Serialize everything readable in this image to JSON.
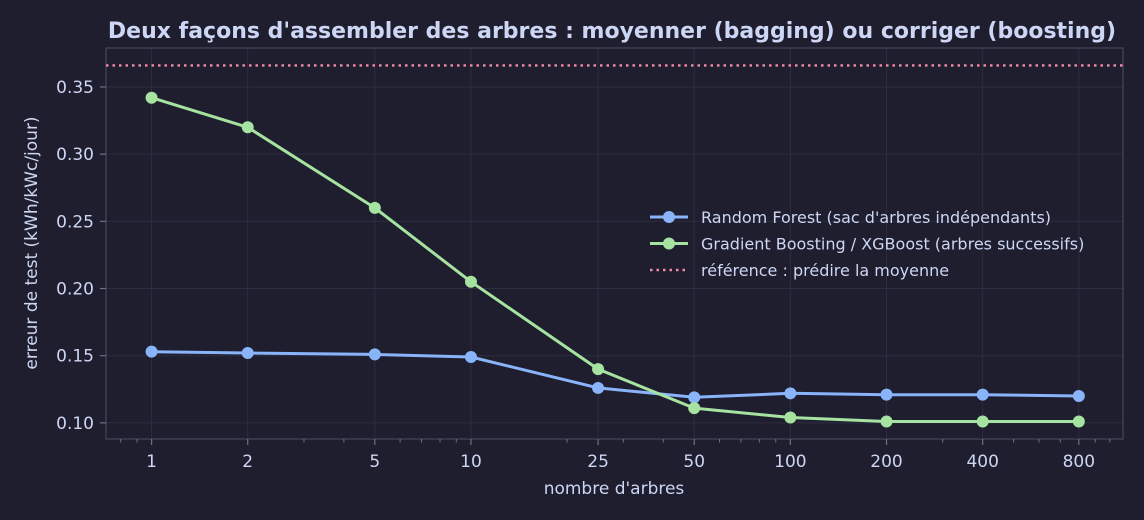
{
  "chart_data": {
    "type": "line",
    "title": "Deux façons d'assembler des arbres : moyenner (bagging) ou corriger (boosting)",
    "xlabel": "nombre d'arbres",
    "ylabel": "erreur de test (kWh/kWc/jour)",
    "x_scale": "log",
    "x": [
      1,
      2,
      5,
      10,
      25,
      50,
      100,
      200,
      400,
      800
    ],
    "x_tick_labels": [
      "1",
      "2",
      "5",
      "10",
      "25",
      "50",
      "100",
      "200",
      "400",
      "800"
    ],
    "y_ticks": [
      0.1,
      0.15,
      0.2,
      0.25,
      0.3,
      0.35
    ],
    "y_tick_labels": [
      "0.10",
      "0.15",
      "0.20",
      "0.25",
      "0.30",
      "0.35"
    ],
    "xlim": [
      0.72,
      1100
    ],
    "ylim": [
      0.088,
      0.379
    ],
    "grid": true,
    "legend_position": "center-right",
    "series": [
      {
        "name": "Random Forest (sac d'arbres indépendants)",
        "color": "#89b4fa",
        "values": [
          0.153,
          0.152,
          0.151,
          0.149,
          0.126,
          0.119,
          0.122,
          0.121,
          0.121,
          0.12
        ]
      },
      {
        "name": "Gradient Boosting / XGBoost (arbres successifs)",
        "color": "#a6e3a1",
        "values": [
          0.342,
          0.32,
          0.26,
          0.205,
          0.14,
          0.111,
          0.104,
          0.101,
          0.101,
          0.101
        ]
      }
    ],
    "reference": {
      "name": "référence : prédire la moyenne",
      "color": "#f38ba8",
      "value": 0.366
    }
  }
}
